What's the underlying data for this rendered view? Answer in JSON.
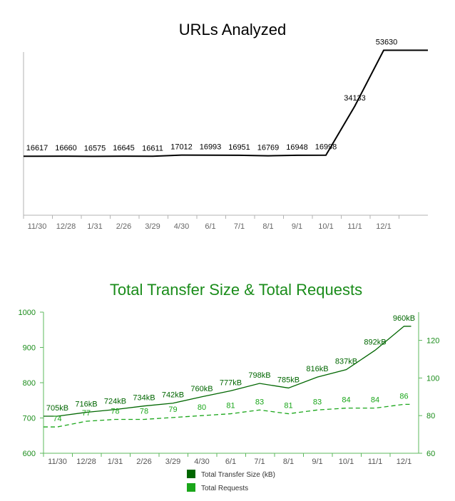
{
  "chart_data": [
    {
      "type": "line",
      "title": "URLs Analyzed",
      "categories": [
        "11/30",
        "12/28",
        "1/31",
        "2/26",
        "3/29",
        "4/30",
        "6/1",
        "7/1",
        "8/1",
        "9/1",
        "10/1",
        "11/1",
        "12/1"
      ],
      "series": [
        {
          "values": [
            16617,
            16660,
            16575,
            16645,
            16611,
            17012,
            16993,
            16951,
            16769,
            16948,
            16998,
            34133,
            53630
          ],
          "labels": [
            "16617",
            "16660",
            "16575",
            "16645",
            "16611",
            "17012",
            "16993",
            "16951",
            "16769",
            "16948",
            "16998",
            "34133",
            "53630"
          ]
        }
      ],
      "line_color": "#000000"
    },
    {
      "type": "line",
      "title": "Total Transfer Size & Total Requests",
      "categories": [
        "11/30",
        "12/28",
        "1/31",
        "2/26",
        "3/29",
        "4/30",
        "6/1",
        "7/1",
        "8/1",
        "9/1",
        "10/1",
        "11/1",
        "12/1"
      ],
      "y_left_ticks": [
        "600",
        "700",
        "800",
        "900",
        "1000"
      ],
      "y_right_ticks": [
        "60",
        "80",
        "100",
        "120"
      ],
      "ylim_left": [
        600,
        1000
      ],
      "ylim_right": [
        60,
        135
      ],
      "series": [
        {
          "name": "Total Transfer Size (kB)",
          "axis": "left",
          "style": "solid",
          "color": "#006600",
          "values": [
            705,
            716,
            724,
            734,
            742,
            760,
            777,
            798,
            785,
            816,
            837,
            892,
            960
          ],
          "labels": [
            "705kB",
            "716kB",
            "724kB",
            "734kB",
            "742kB",
            "760kB",
            "777kB",
            "798kB",
            "785kB",
            "816kB",
            "837kB",
            "892kB",
            "960kB"
          ]
        },
        {
          "name": "Total Requests",
          "axis": "right",
          "style": "dashed",
          "color": "#1aa61a",
          "values": [
            74,
            77,
            78,
            78,
            79,
            80,
            81,
            83,
            81,
            83,
            84,
            84,
            86
          ],
          "labels": [
            "74",
            "77",
            "78",
            "78",
            "79",
            "80",
            "81",
            "83",
            "81",
            "83",
            "84",
            "84",
            "86"
          ]
        }
      ],
      "legend": "bottom"
    }
  ]
}
